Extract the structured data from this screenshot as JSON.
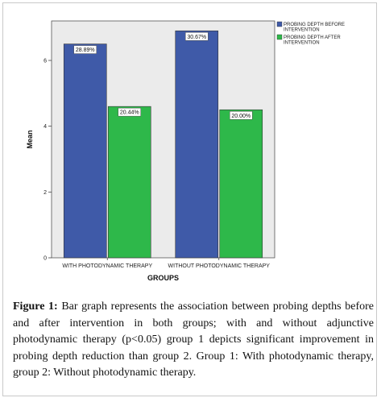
{
  "chart_data": {
    "type": "bar",
    "categories": [
      "WITH PHOTODYNAMIC THERAPY",
      "WITHOUT PHOTODYNAMIC THERAPY"
    ],
    "series": [
      {
        "name": "PROBING DEPTH BEFORE INTERVENTION",
        "values": [
          6.5,
          6.9
        ],
        "labels": [
          "28.89%",
          "30.67%"
        ],
        "color": "#3f5aa8"
      },
      {
        "name": "PROBING DEPTH AFTER INTERVENTION",
        "values": [
          4.6,
          4.5
        ],
        "labels": [
          "20.44%",
          "20.00%"
        ],
        "color": "#2eb84a"
      }
    ],
    "xlabel": "GROUPS",
    "ylabel": "Mean",
    "ylim": [
      0,
      7.2
    ],
    "yticks": [
      0,
      2,
      4,
      6
    ],
    "legend_position": "top-right",
    "grid": false,
    "plot_background": "#ebebeb"
  },
  "caption": {
    "label": "Figure 1:",
    "text": " Bar graph represents the association between probing depths before and after intervention in both groups; with and without adjunctive photodynamic therapy (p<0.05) group 1 depicts significant improvement in probing depth reduction than group 2. Group 1: With photodynamic therapy, group 2: Without photodynamic therapy."
  }
}
